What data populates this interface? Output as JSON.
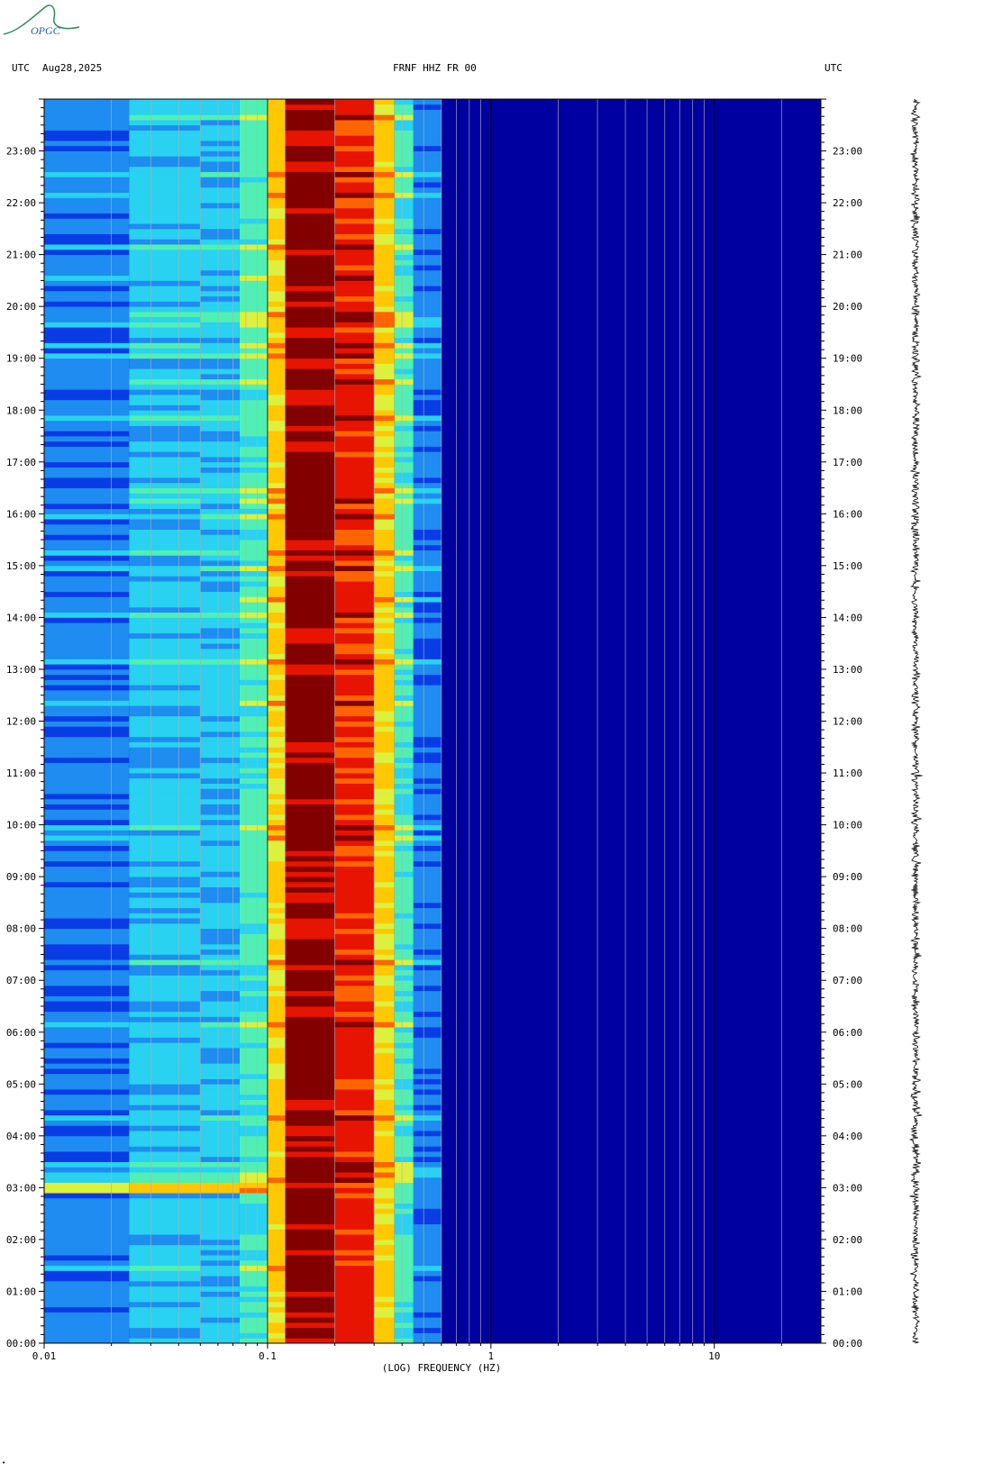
{
  "header": {
    "left_tz": "UTC",
    "date": "Aug28,2025",
    "station": "FRNF HHZ FR 00",
    "right_tz": "UTC"
  },
  "logo": {
    "text": "OPGC",
    "color": "#2e8b57"
  },
  "chart_data": {
    "type": "heatmap",
    "title": "FRNF HHZ FR 00",
    "xlabel": "(LOG) FREQUENCY (HZ)",
    "ylabel": "",
    "x_scale": "log",
    "xlim": [
      0.01,
      30
    ],
    "x_ticks": [
      {
        "value": 0.01,
        "label": "0.01"
      },
      {
        "value": 0.1,
        "label": "0.1"
      },
      {
        "value": 1,
        "label": "1"
      },
      {
        "value": 10,
        "label": "10"
      }
    ],
    "y_unit": "hours UTC",
    "ylim": [
      0,
      24
    ],
    "y_tick_labels": [
      "00:00",
      "01:00",
      "02:00",
      "03:00",
      "04:00",
      "05:00",
      "06:00",
      "07:00",
      "08:00",
      "09:00",
      "10:00",
      "11:00",
      "12:00",
      "13:00",
      "14:00",
      "15:00",
      "16:00",
      "17:00",
      "18:00",
      "19:00",
      "20:00",
      "21:00",
      "22:00",
      "23:00"
    ],
    "colormap": [
      "#0000a0",
      "#0a3ce6",
      "#1e8cf0",
      "#28d2f0",
      "#50f0b4",
      "#dcf03c",
      "#ffc800",
      "#ff6400",
      "#e61400",
      "#820000"
    ],
    "spectrum_bands": [
      {
        "f_min": 0.01,
        "f_max": 0.024,
        "level": 2
      },
      {
        "f_min": 0.024,
        "f_max": 0.05,
        "level": 3
      },
      {
        "f_min": 0.05,
        "f_max": 0.075,
        "level": 3
      },
      {
        "f_min": 0.075,
        "f_max": 0.1,
        "level": 4
      },
      {
        "f_min": 0.1,
        "f_max": 0.12,
        "level": 6
      },
      {
        "f_min": 0.12,
        "f_max": 0.2,
        "level": 9
      },
      {
        "f_min": 0.2,
        "f_max": 0.3,
        "level": 8
      },
      {
        "f_min": 0.3,
        "f_max": 0.37,
        "level": 6
      },
      {
        "f_min": 0.37,
        "f_max": 0.45,
        "level": 4
      },
      {
        "f_min": 0.45,
        "f_max": 0.6,
        "level": 2
      },
      {
        "f_min": 0.6,
        "f_max": 30,
        "level": 0
      }
    ],
    "notable_event_hour": 3.0,
    "grid_frequencies": [
      0.02,
      0.03,
      0.04,
      0.05,
      0.06,
      0.07,
      0.08,
      0.09,
      0.2,
      0.3,
      0.4,
      0.5,
      0.6,
      0.7,
      0.8,
      0.9,
      2,
      3,
      4,
      5,
      6,
      7,
      8,
      9,
      20
    ],
    "grid": true,
    "legend": "none"
  }
}
